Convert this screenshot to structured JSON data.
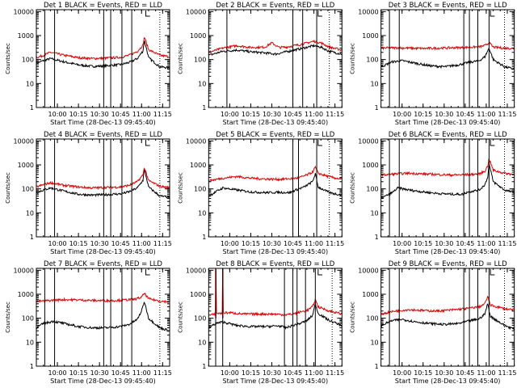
{
  "colors": {
    "events": "#000000",
    "lld": "#e00000",
    "axes": "#000000",
    "background": "#ffffff"
  },
  "common": {
    "ylabel": "Counts/sec",
    "xlabel": "Start Time (28-Dec-13 09:45:40)",
    "x_tick_labels": [
      "10:00",
      "10:15",
      "10:30",
      "10:45",
      "11:00",
      "11:15"
    ],
    "y_tick_labels": [
      "1",
      "10",
      "100",
      "1000",
      "10000"
    ]
  },
  "chart_data": [
    {
      "type": "line",
      "title": "Det 1 BLACK = Events, RED = LLD",
      "xlabel": "Start Time (28-Dec-13 09:45:40)",
      "ylabel": "Counts/sec",
      "yscale": "log",
      "xlim": [
        0,
        95
      ],
      "ylim": [
        1,
        12000
      ],
      "x_ticks_min": [
        15,
        30,
        45,
        60,
        75,
        90
      ],
      "vlines_min": [
        6,
        13,
        48,
        53,
        61,
        68
      ],
      "dotted_min": [
        88
      ],
      "series": [
        {
          "name": "Events",
          "key": "events",
          "x": [
            0,
            5,
            10,
            20,
            30,
            40,
            50,
            60,
            66,
            72,
            76,
            77,
            80,
            88,
            95
          ],
          "values": [
            70,
            90,
            110,
            80,
            60,
            52,
            55,
            62,
            75,
            110,
            230,
            650,
            120,
            50,
            45
          ]
        },
        {
          "name": "LLD",
          "key": "lld",
          "x": [
            0,
            5,
            10,
            20,
            30,
            40,
            50,
            60,
            66,
            72,
            76,
            77,
            80,
            88,
            95
          ],
          "values": [
            120,
            150,
            200,
            150,
            120,
            110,
            115,
            125,
            150,
            220,
            400,
            900,
            260,
            150,
            130
          ]
        }
      ]
    },
    {
      "type": "line",
      "title": "Det 2 BLACK = Events, RED = LLD",
      "xlabel": "Start Time (28-Dec-13 09:45:40)",
      "ylabel": "Counts/sec",
      "yscale": "log",
      "xlim": [
        0,
        95
      ],
      "ylim": [
        1,
        12000
      ],
      "x_ticks_min": [
        15,
        30,
        45,
        60,
        75,
        90
      ],
      "vlines_min": [
        13,
        60,
        67,
        77
      ],
      "dotted_min": [
        86
      ],
      "series": [
        {
          "name": "Events",
          "key": "events",
          "x": [
            0,
            10,
            20,
            30,
            40,
            48,
            55,
            65,
            75,
            80,
            86,
            95
          ],
          "values": [
            150,
            220,
            250,
            210,
            190,
            170,
            210,
            280,
            380,
            330,
            220,
            170
          ]
        },
        {
          "name": "LLD",
          "key": "lld",
          "x": [
            0,
            10,
            20,
            30,
            40,
            45,
            50,
            55,
            65,
            75,
            80,
            86,
            95
          ],
          "values": [
            200,
            300,
            380,
            320,
            330,
            500,
            320,
            330,
            420,
            580,
            500,
            330,
            250
          ]
        }
      ]
    },
    {
      "type": "line",
      "title": "Det 3 BLACK = Events, RED = LLD",
      "xlabel": "Start Time (28-Dec-13 09:45:40)",
      "ylabel": "Counts/sec",
      "yscale": "log",
      "xlim": [
        0,
        95
      ],
      "ylim": [
        1,
        12000
      ],
      "x_ticks_min": [
        15,
        30,
        45,
        60,
        75,
        90
      ],
      "vlines_min": [
        6,
        13,
        59,
        63,
        69,
        77
      ],
      "dotted_min": [
        88
      ],
      "series": [
        {
          "name": "Events",
          "key": "events",
          "x": [
            0,
            8,
            15,
            25,
            35,
            45,
            55,
            62,
            70,
            74,
            77,
            80,
            88,
            95
          ],
          "values": [
            50,
            80,
            90,
            70,
            55,
            50,
            60,
            75,
            90,
            130,
            300,
            100,
            50,
            40
          ]
        },
        {
          "name": "LLD",
          "key": "lld",
          "x": [
            0,
            10,
            20,
            30,
            40,
            50,
            60,
            70,
            74,
            77,
            80,
            88,
            95
          ],
          "values": [
            300,
            310,
            300,
            290,
            300,
            310,
            320,
            340,
            380,
            500,
            330,
            300,
            290
          ]
        }
      ]
    },
    {
      "type": "line",
      "title": "Det 4 BLACK = Events, RED = LLD",
      "xlabel": "Start Time (28-Dec-13 09:45:40)",
      "ylabel": "Counts/sec",
      "yscale": "log",
      "xlim": [
        0,
        95
      ],
      "ylim": [
        1,
        12000
      ],
      "x_ticks_min": [
        15,
        30,
        45,
        60,
        75,
        90
      ],
      "vlines_min": [
        6,
        13,
        48,
        53,
        61,
        68
      ],
      "dotted_min": [
        88
      ],
      "series": [
        {
          "name": "Events",
          "key": "events",
          "x": [
            0,
            5,
            10,
            20,
            30,
            40,
            50,
            60,
            66,
            72,
            76,
            77,
            80,
            88,
            95
          ],
          "values": [
            70,
            90,
            110,
            80,
            60,
            55,
            58,
            62,
            75,
            110,
            230,
            650,
            120,
            50,
            45
          ]
        },
        {
          "name": "LLD",
          "key": "lld",
          "x": [
            0,
            5,
            10,
            20,
            30,
            40,
            50,
            60,
            66,
            72,
            76,
            77,
            80,
            88,
            95
          ],
          "values": [
            120,
            150,
            180,
            140,
            120,
            110,
            115,
            120,
            140,
            200,
            380,
            800,
            220,
            130,
            110
          ]
        }
      ]
    },
    {
      "type": "line",
      "title": "Det 5 BLACK = Events, RED = LLD",
      "xlabel": "Start Time (28-Dec-13 09:45:40)",
      "ylabel": "Counts/sec",
      "yscale": "log",
      "xlim": [
        0,
        95
      ],
      "ylim": [
        1,
        12000
      ],
      "x_ticks_min": [
        15,
        30,
        45,
        60,
        75,
        90
      ],
      "vlines_min": [
        60,
        64,
        77
      ],
      "dotted_min": [
        86
      ],
      "series": [
        {
          "name": "Events",
          "key": "events",
          "x": [
            0,
            5,
            10,
            20,
            30,
            40,
            50,
            58,
            62,
            68,
            74,
            76,
            78,
            86,
            95
          ],
          "values": [
            50,
            75,
            110,
            90,
            75,
            70,
            72,
            70,
            90,
            120,
            200,
            420,
            120,
            70,
            55
          ]
        },
        {
          "name": "LLD",
          "key": "lld",
          "x": [
            0,
            10,
            20,
            30,
            40,
            50,
            60,
            65,
            70,
            74,
            76,
            78,
            86,
            95
          ],
          "values": [
            220,
            280,
            330,
            280,
            260,
            250,
            270,
            300,
            380,
            500,
            800,
            450,
            320,
            250
          ]
        }
      ]
    },
    {
      "type": "line",
      "title": "Det 6 BLACK = Events, RED = LLD",
      "xlabel": "Start Time (28-Dec-13 09:45:40)",
      "ylabel": "Counts/sec",
      "yscale": "log",
      "xlim": [
        0,
        95
      ],
      "ylim": [
        1,
        12000
      ],
      "x_ticks_min": [
        15,
        30,
        45,
        60,
        75,
        90
      ],
      "vlines_min": [
        6,
        13,
        59,
        63,
        69,
        77
      ],
      "dotted_min": [
        88
      ],
      "series": [
        {
          "name": "Events",
          "key": "events",
          "x": [
            0,
            8,
            12,
            20,
            30,
            40,
            50,
            58,
            62,
            70,
            74,
            76,
            77,
            80,
            88,
            95
          ],
          "values": [
            40,
            70,
            110,
            90,
            75,
            65,
            60,
            60,
            75,
            90,
            150,
            300,
            1100,
            200,
            90,
            70
          ]
        },
        {
          "name": "LLD",
          "key": "lld",
          "x": [
            0,
            10,
            20,
            30,
            40,
            50,
            60,
            70,
            74,
            76,
            77,
            80,
            88,
            95
          ],
          "values": [
            380,
            420,
            450,
            420,
            400,
            380,
            390,
            420,
            550,
            900,
            1800,
            600,
            450,
            400
          ]
        }
      ]
    },
    {
      "type": "line",
      "title": "Det 7 BLACK = Events, RED = LLD",
      "xlabel": "Start Time (28-Dec-13 09:45:40)",
      "ylabel": "Counts/sec",
      "yscale": "log",
      "xlim": [
        0,
        95
      ],
      "ylim": [
        1,
        12000
      ],
      "x_ticks_min": [
        15,
        30,
        45,
        60,
        75,
        90
      ],
      "vlines_min": [
        6,
        13,
        48,
        53,
        61,
        68
      ],
      "dotted_min": [
        88
      ],
      "series": [
        {
          "name": "Events",
          "key": "events",
          "x": [
            0,
            5,
            12,
            20,
            30,
            40,
            50,
            60,
            66,
            72,
            75,
            77,
            80,
            88,
            95
          ],
          "values": [
            40,
            60,
            75,
            60,
            45,
            40,
            40,
            45,
            55,
            90,
            200,
            500,
            100,
            40,
            30
          ]
        },
        {
          "name": "LLD",
          "key": "lld",
          "x": [
            0,
            10,
            20,
            30,
            40,
            50,
            60,
            70,
            75,
            77,
            80,
            88,
            95
          ],
          "values": [
            500,
            550,
            600,
            580,
            550,
            540,
            560,
            620,
            750,
            1100,
            650,
            520,
            480
          ]
        }
      ]
    },
    {
      "type": "line",
      "title": "Det 8 BLACK = Events, RED = LLD",
      "xlabel": "Start Time (28-Dec-13 09:45:40)",
      "ylabel": "Counts/sec",
      "yscale": "log",
      "xlim": [
        0,
        95
      ],
      "ylim": [
        1,
        12000
      ],
      "x_ticks_min": [
        15,
        30,
        45,
        60,
        75,
        90
      ],
      "vlines_min": [
        5,
        10,
        54,
        60,
        63,
        69,
        76
      ],
      "dotted_min": [
        88
      ],
      "series": [
        {
          "name": "Events",
          "key": "events",
          "x": [
            0,
            5,
            10,
            20,
            30,
            40,
            50,
            55,
            60,
            65,
            70,
            74,
            76,
            78,
            86,
            95
          ],
          "values": [
            40,
            60,
            70,
            50,
            45,
            45,
            48,
            40,
            50,
            60,
            80,
            130,
            400,
            160,
            80,
            50
          ]
        },
        {
          "name": "LLD",
          "key": "lld",
          "x": [
            0,
            4.8,
            4.9,
            5.2,
            5.3,
            9.8,
            9.9,
            10.2,
            10.3,
            15,
            25,
            35,
            45,
            55,
            60,
            65,
            70,
            74,
            76,
            78,
            86,
            95
          ],
          "values": [
            130,
            150,
            11000,
            11000,
            160,
            160,
            11000,
            11000,
            170,
            170,
            150,
            150,
            150,
            140,
            150,
            180,
            210,
            300,
            600,
            300,
            200,
            150
          ]
        }
      ]
    },
    {
      "type": "line",
      "title": "Det 9 BLACK = Events, RED = LLD",
      "xlabel": "Start Time (28-Dec-13 09:45:40)",
      "ylabel": "Counts/sec",
      "yscale": "log",
      "xlim": [
        0,
        95
      ],
      "ylim": [
        1,
        12000
      ],
      "x_ticks_min": [
        15,
        30,
        45,
        60,
        75,
        90
      ],
      "vlines_min": [
        6,
        13,
        59,
        63,
        69,
        77
      ],
      "dotted_min": [
        88
      ],
      "series": [
        {
          "name": "Events",
          "key": "events",
          "x": [
            0,
            8,
            15,
            25,
            35,
            45,
            55,
            62,
            70,
            74,
            76,
            78,
            88,
            95
          ],
          "values": [
            50,
            80,
            90,
            70,
            60,
            55,
            60,
            75,
            95,
            150,
            400,
            120,
            50,
            35
          ]
        },
        {
          "name": "LLD",
          "key": "lld",
          "x": [
            0,
            10,
            20,
            30,
            40,
            50,
            60,
            70,
            74,
            76,
            78,
            88,
            95
          ],
          "values": [
            150,
            200,
            230,
            210,
            200,
            220,
            250,
            300,
            400,
            800,
            350,
            250,
            220
          ]
        }
      ]
    }
  ]
}
